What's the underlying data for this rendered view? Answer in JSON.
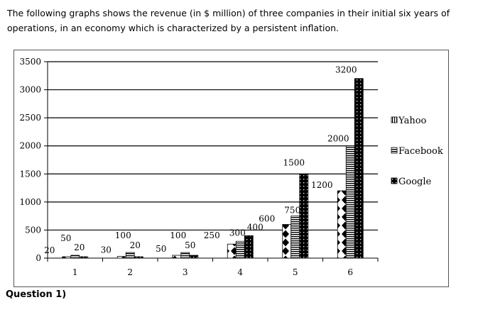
{
  "intro_text": "The following graphs shows the revenue (in $ million) of three companies in their initial six years of operations, in an economy which is characterized by a persistent inflation.",
  "question_label": "Question 1)",
  "chart_data": {
    "type": "bar",
    "title": "",
    "xlabel": "",
    "ylabel": "",
    "categories": [
      "1",
      "2",
      "3",
      "4",
      "5",
      "6"
    ],
    "series": [
      {
        "name": "Yahoo",
        "values": [
          20,
          30,
          50,
          250,
          600,
          1200
        ],
        "pattern": "diamonds",
        "data_labels": [
          "20",
          "30",
          "50",
          "250",
          "600",
          "1200"
        ]
      },
      {
        "name": "Facebook",
        "values": [
          50,
          100,
          100,
          300,
          750,
          2000
        ],
        "pattern": "horizontal-lines",
        "data_labels": [
          "50",
          "100",
          "100",
          "300",
          "750",
          "2000"
        ]
      },
      {
        "name": "Google",
        "values": [
          20,
          20,
          50,
          400,
          1500,
          3200
        ],
        "pattern": "black-dotted",
        "data_labels": [
          "20",
          "20",
          "50",
          "400",
          "1500",
          "3200"
        ]
      }
    ],
    "ylim": [
      0,
      3500
    ],
    "yticks": [
      "0",
      "500",
      "1000",
      "1500",
      "2000",
      "2500",
      "3000",
      "3500"
    ],
    "grid": true,
    "legend_position": "right"
  }
}
